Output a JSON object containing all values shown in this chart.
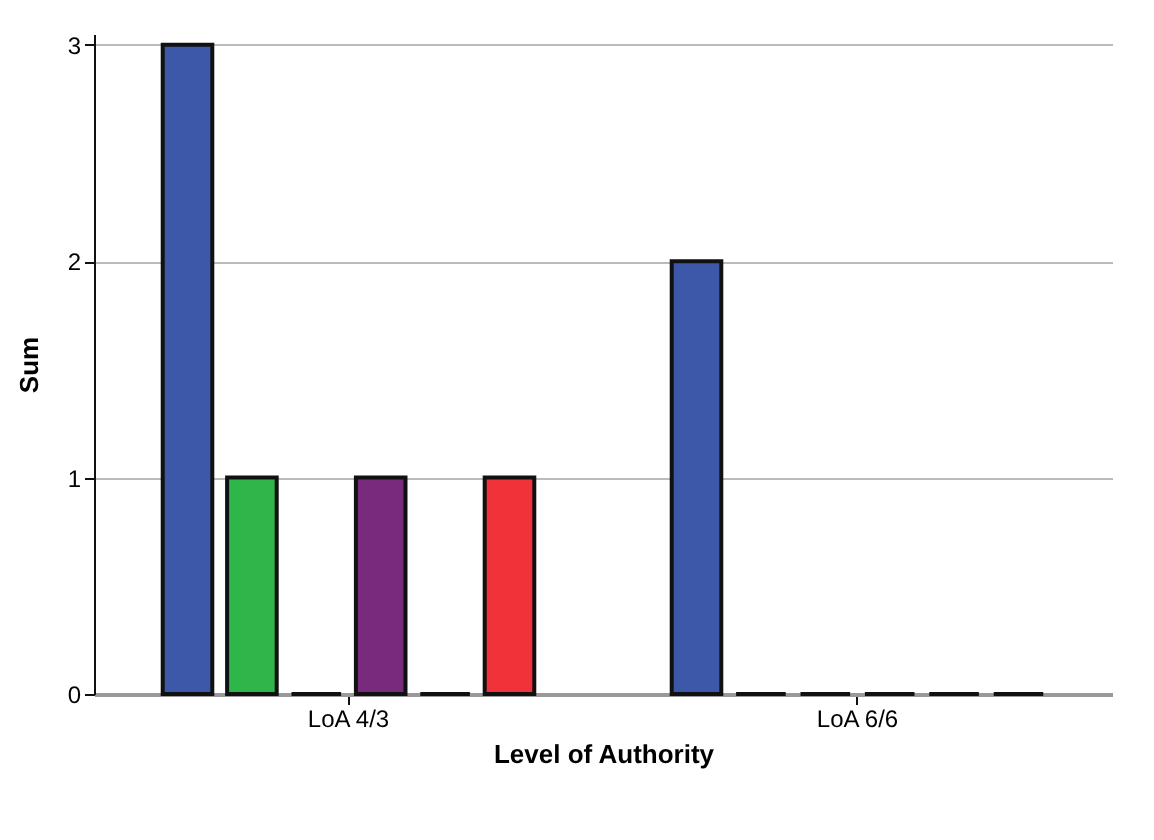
{
  "chart_data": {
    "type": "bar",
    "xlabel": "Level of Authority",
    "ylabel": "Sum",
    "categories": [
      "LoA 4/3",
      "LoA 6/6"
    ],
    "series": [
      {
        "color": "#3d58a8",
        "values": [
          3,
          2
        ]
      },
      {
        "colors": [
          "#2fb64a",
          "#111111"
        ],
        "values": [
          1,
          0
        ]
      },
      {
        "color": "#111111",
        "values": [
          0,
          0
        ]
      },
      {
        "colors": [
          "#7a2a7c",
          "#111111"
        ],
        "values": [
          1,
          0
        ]
      },
      {
        "color": "#111111",
        "values": [
          0,
          0
        ]
      },
      {
        "colors": [
          "#ef3339",
          "#111111"
        ],
        "values": [
          1,
          0
        ]
      }
    ],
    "ylim": [
      0,
      3.05
    ],
    "yticks": [
      0,
      1,
      2,
      3
    ],
    "grid": "y"
  }
}
